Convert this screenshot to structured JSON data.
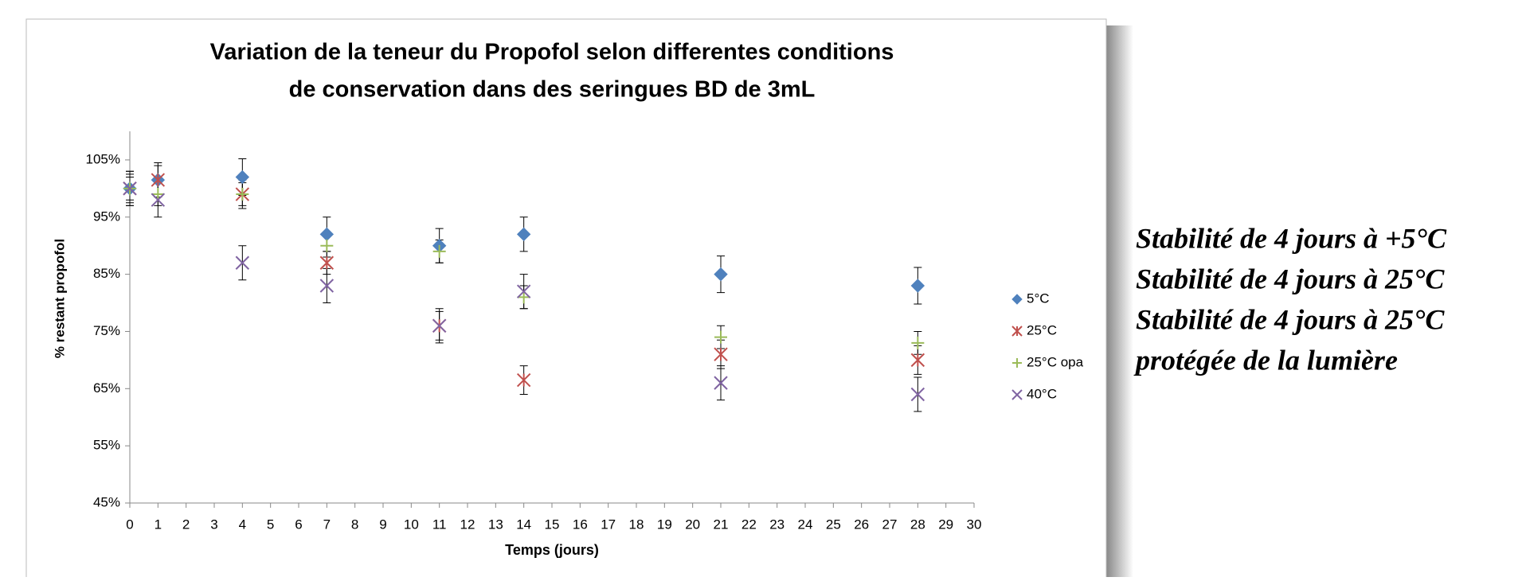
{
  "chart_data": {
    "type": "scatter",
    "title": [
      "Variation de la teneur du Propofol  selon differentes conditions",
      "de conservation dans des seringues BD de 3mL"
    ],
    "x_label": "Temps (jours)",
    "y_label": "% restant propofol",
    "x": [
      0,
      1,
      4,
      7,
      11,
      14,
      21,
      28
    ],
    "series": [
      {
        "name": "5°C",
        "color": "#4f81bd",
        "marker": "diamond",
        "values": [
          100,
          101.5,
          102,
          92,
          90,
          92,
          85,
          83
        ],
        "errors": [
          3,
          3,
          3.2,
          3,
          3,
          3,
          3.2,
          3.2
        ]
      },
      {
        "name": "25°C",
        "color": "#c0504d",
        "marker": "star",
        "values": [
          100,
          101.5,
          99,
          87,
          76,
          66.5,
          71,
          70
        ],
        "errors": [
          2.5,
          2.5,
          2.5,
          2,
          2.5,
          2.5,
          2.5,
          2.5
        ]
      },
      {
        "name": "25°C opa",
        "color": "#9bbb59",
        "marker": "plus",
        "values": [
          100,
          99,
          99,
          90,
          89,
          81,
          74,
          73
        ],
        "errors": [
          2,
          2,
          2,
          2,
          2,
          2,
          2,
          2
        ]
      },
      {
        "name": "40°C",
        "color": "#8064a2",
        "marker": "cross",
        "values": [
          100,
          98,
          87,
          83,
          76,
          82,
          66,
          64
        ],
        "errors": [
          3,
          3,
          3,
          3,
          3,
          3,
          3,
          3
        ]
      }
    ],
    "xlim": [
      0,
      30
    ],
    "xticks": [
      0,
      1,
      2,
      3,
      4,
      5,
      6,
      7,
      8,
      9,
      10,
      11,
      12,
      13,
      14,
      15,
      16,
      17,
      18,
      19,
      20,
      21,
      22,
      23,
      24,
      25,
      26,
      27,
      28,
      29,
      30
    ],
    "ylim": [
      45,
      110
    ],
    "yticks": [
      {
        "value": 45,
        "label": "45%"
      },
      {
        "value": 55,
        "label": "55%"
      },
      {
        "value": 65,
        "label": "65%"
      },
      {
        "value": 75,
        "label": "75%"
      },
      {
        "value": 85,
        "label": "85%"
      },
      {
        "value": 95,
        "label": "95%"
      },
      {
        "value": 105,
        "label": "105%"
      }
    ],
    "legend": "right"
  },
  "side_text": [
    "Stabilité de 4 jours à +5°C",
    "Stabilité de 4 jours à 25°C",
    "Stabilité de 4 jours à 25°C",
    "protégée de la lumière"
  ]
}
